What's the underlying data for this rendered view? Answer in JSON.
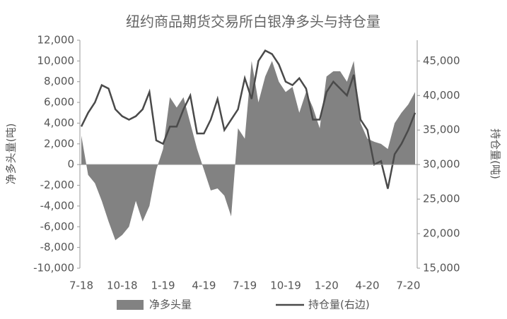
{
  "chart_data": {
    "type": "area-line",
    "title": "纽约商品期货交易所白银净多头与持仓量",
    "y_label": "净多头量(吨)",
    "y2_label": "持仓量(吨)",
    "categories": [
      "7-18",
      null,
      null,
      null,
      null,
      null,
      "10-18",
      null,
      null,
      null,
      null,
      null,
      "1-19",
      null,
      null,
      null,
      null,
      null,
      "4-19",
      null,
      null,
      null,
      null,
      null,
      "7-19",
      null,
      null,
      null,
      null,
      null,
      "10-19",
      null,
      null,
      null,
      null,
      null,
      "1-20",
      null,
      null,
      null,
      null,
      null,
      "4-20",
      null,
      null,
      null,
      null,
      null,
      "7-20",
      null
    ],
    "series": [
      {
        "name": "净多头量",
        "kind": "area",
        "color": "#828282",
        "values": [
          2800,
          -1000,
          -1800,
          -3500,
          -5500,
          -7300,
          -6800,
          -6000,
          -3500,
          -5500,
          -4000,
          -500,
          1500,
          6500,
          5500,
          6500,
          4000,
          1500,
          -500,
          -2500,
          -2300,
          -3000,
          -5000,
          3500,
          2500,
          10000,
          6000,
          8500,
          10000,
          8000,
          7000,
          7500,
          5000,
          7000,
          5500,
          3500,
          8500,
          9000,
          9000,
          8000,
          10000,
          4000,
          2500,
          2200,
          2000,
          1500,
          4000,
          5000,
          5800,
          7000
        ]
      },
      {
        "name": "持仓量(右边)",
        "kind": "line",
        "axis": "y2",
        "color": "#4a4a4a",
        "values": [
          35500,
          37500,
          39000,
          41500,
          41000,
          38000,
          37000,
          36500,
          37000,
          38000,
          40500,
          33500,
          33000,
          35500,
          35500,
          38000,
          40000,
          34500,
          34500,
          36500,
          39500,
          35000,
          36500,
          38000,
          42500,
          39500,
          45000,
          46500,
          46000,
          44500,
          42000,
          41500,
          42500,
          41000,
          36500,
          36500,
          40500,
          42000,
          41000,
          40000,
          43000,
          36500,
          35000,
          30000,
          30500,
          26500,
          31500,
          33000,
          35000,
          37500
        ]
      }
    ],
    "ylim": [
      -10000,
      12000
    ],
    "yticks": [
      {
        "value": -10000,
        "label": "-10,000"
      },
      {
        "value": -8000,
        "label": "-8,000"
      },
      {
        "value": -6000,
        "label": "-6,000"
      },
      {
        "value": -4000,
        "label": "-4,000"
      },
      {
        "value": -2000,
        "label": "-2,000"
      },
      0,
      {
        "value": 2000,
        "label": "2,000"
      },
      {
        "value": 4000,
        "label": "4,000"
      },
      {
        "value": 6000,
        "label": "6,000"
      },
      {
        "value": 8000,
        "label": "8,000"
      },
      {
        "value": 10000,
        "label": "10,000"
      },
      {
        "value": 12000,
        "label": "12,000"
      }
    ],
    "y2lim": [
      15000,
      48000
    ],
    "y2ticks": [
      {
        "value": 15000,
        "label": "15,000"
      },
      {
        "value": 20000,
        "label": "20,000"
      },
      {
        "value": 25000,
        "label": "25,000"
      },
      {
        "value": 30000,
        "label": "30,000"
      },
      {
        "value": 35000,
        "label": "35,000"
      },
      {
        "value": 40000,
        "label": "40,000"
      },
      {
        "value": 45000,
        "label": "45,000"
      }
    ],
    "legend": "bottom"
  }
}
